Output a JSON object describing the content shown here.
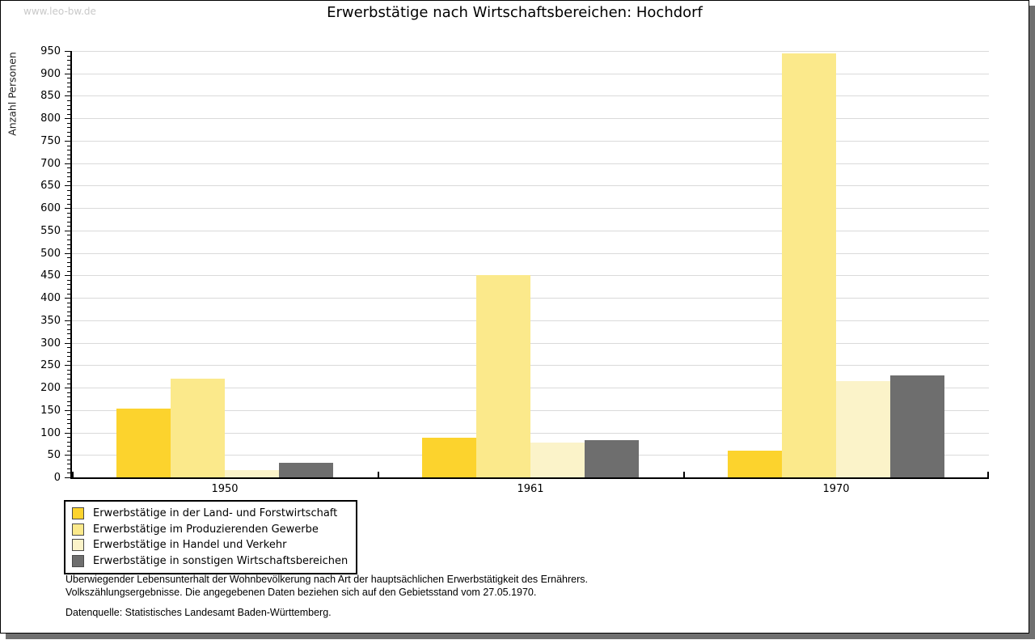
{
  "watermark": "www.leo-bw.de",
  "title": "Erwerbstätige nach Wirtschaftsbereichen: Hochdorf",
  "chart_data": {
    "type": "bar",
    "title": "Erwerbstätige nach Wirtschaftsbereichen: Hochdorf",
    "ylabel": "Anzahl Personen",
    "xlabel": "",
    "categories": [
      "1950",
      "1961",
      "1970"
    ],
    "series": [
      {
        "name": "Erwerbstätige in der Land- und Forstwirtschaft",
        "color": "#fcd32d",
        "values": [
          154,
          88,
          60
        ]
      },
      {
        "name": "Erwerbstätige im Produzierenden Gewerbe",
        "color": "#fbe98b",
        "values": [
          220,
          450,
          945
        ]
      },
      {
        "name": "Erwerbstätige in Handel und Verkehr",
        "color": "#fbf3c9",
        "values": [
          16,
          77,
          214
        ]
      },
      {
        "name": "Erwerbstätige in sonstigen Wirtschaftsbereichen",
        "color": "#6e6e6e",
        "values": [
          32,
          83,
          227
        ]
      }
    ],
    "ylim": [
      0,
      950
    ],
    "ytick_step": 50,
    "minor_tick_step": 10,
    "grid": true,
    "gridline_color": "#dadada",
    "legend_position": "bottom-left"
  },
  "footnote": {
    "line1": "Überwiegender Lebensunterhalt der Wohnbevölkerung nach Art der hauptsächlichen Erwerbstätigkeit des Ernährers.",
    "line2": "Volkszählungsergebnisse. Die angegebenen Daten beziehen sich auf den Gebietsstand vom 27.05.1970.",
    "source": "Datenquelle: Statistisches Landesamt Baden-Württemberg."
  }
}
